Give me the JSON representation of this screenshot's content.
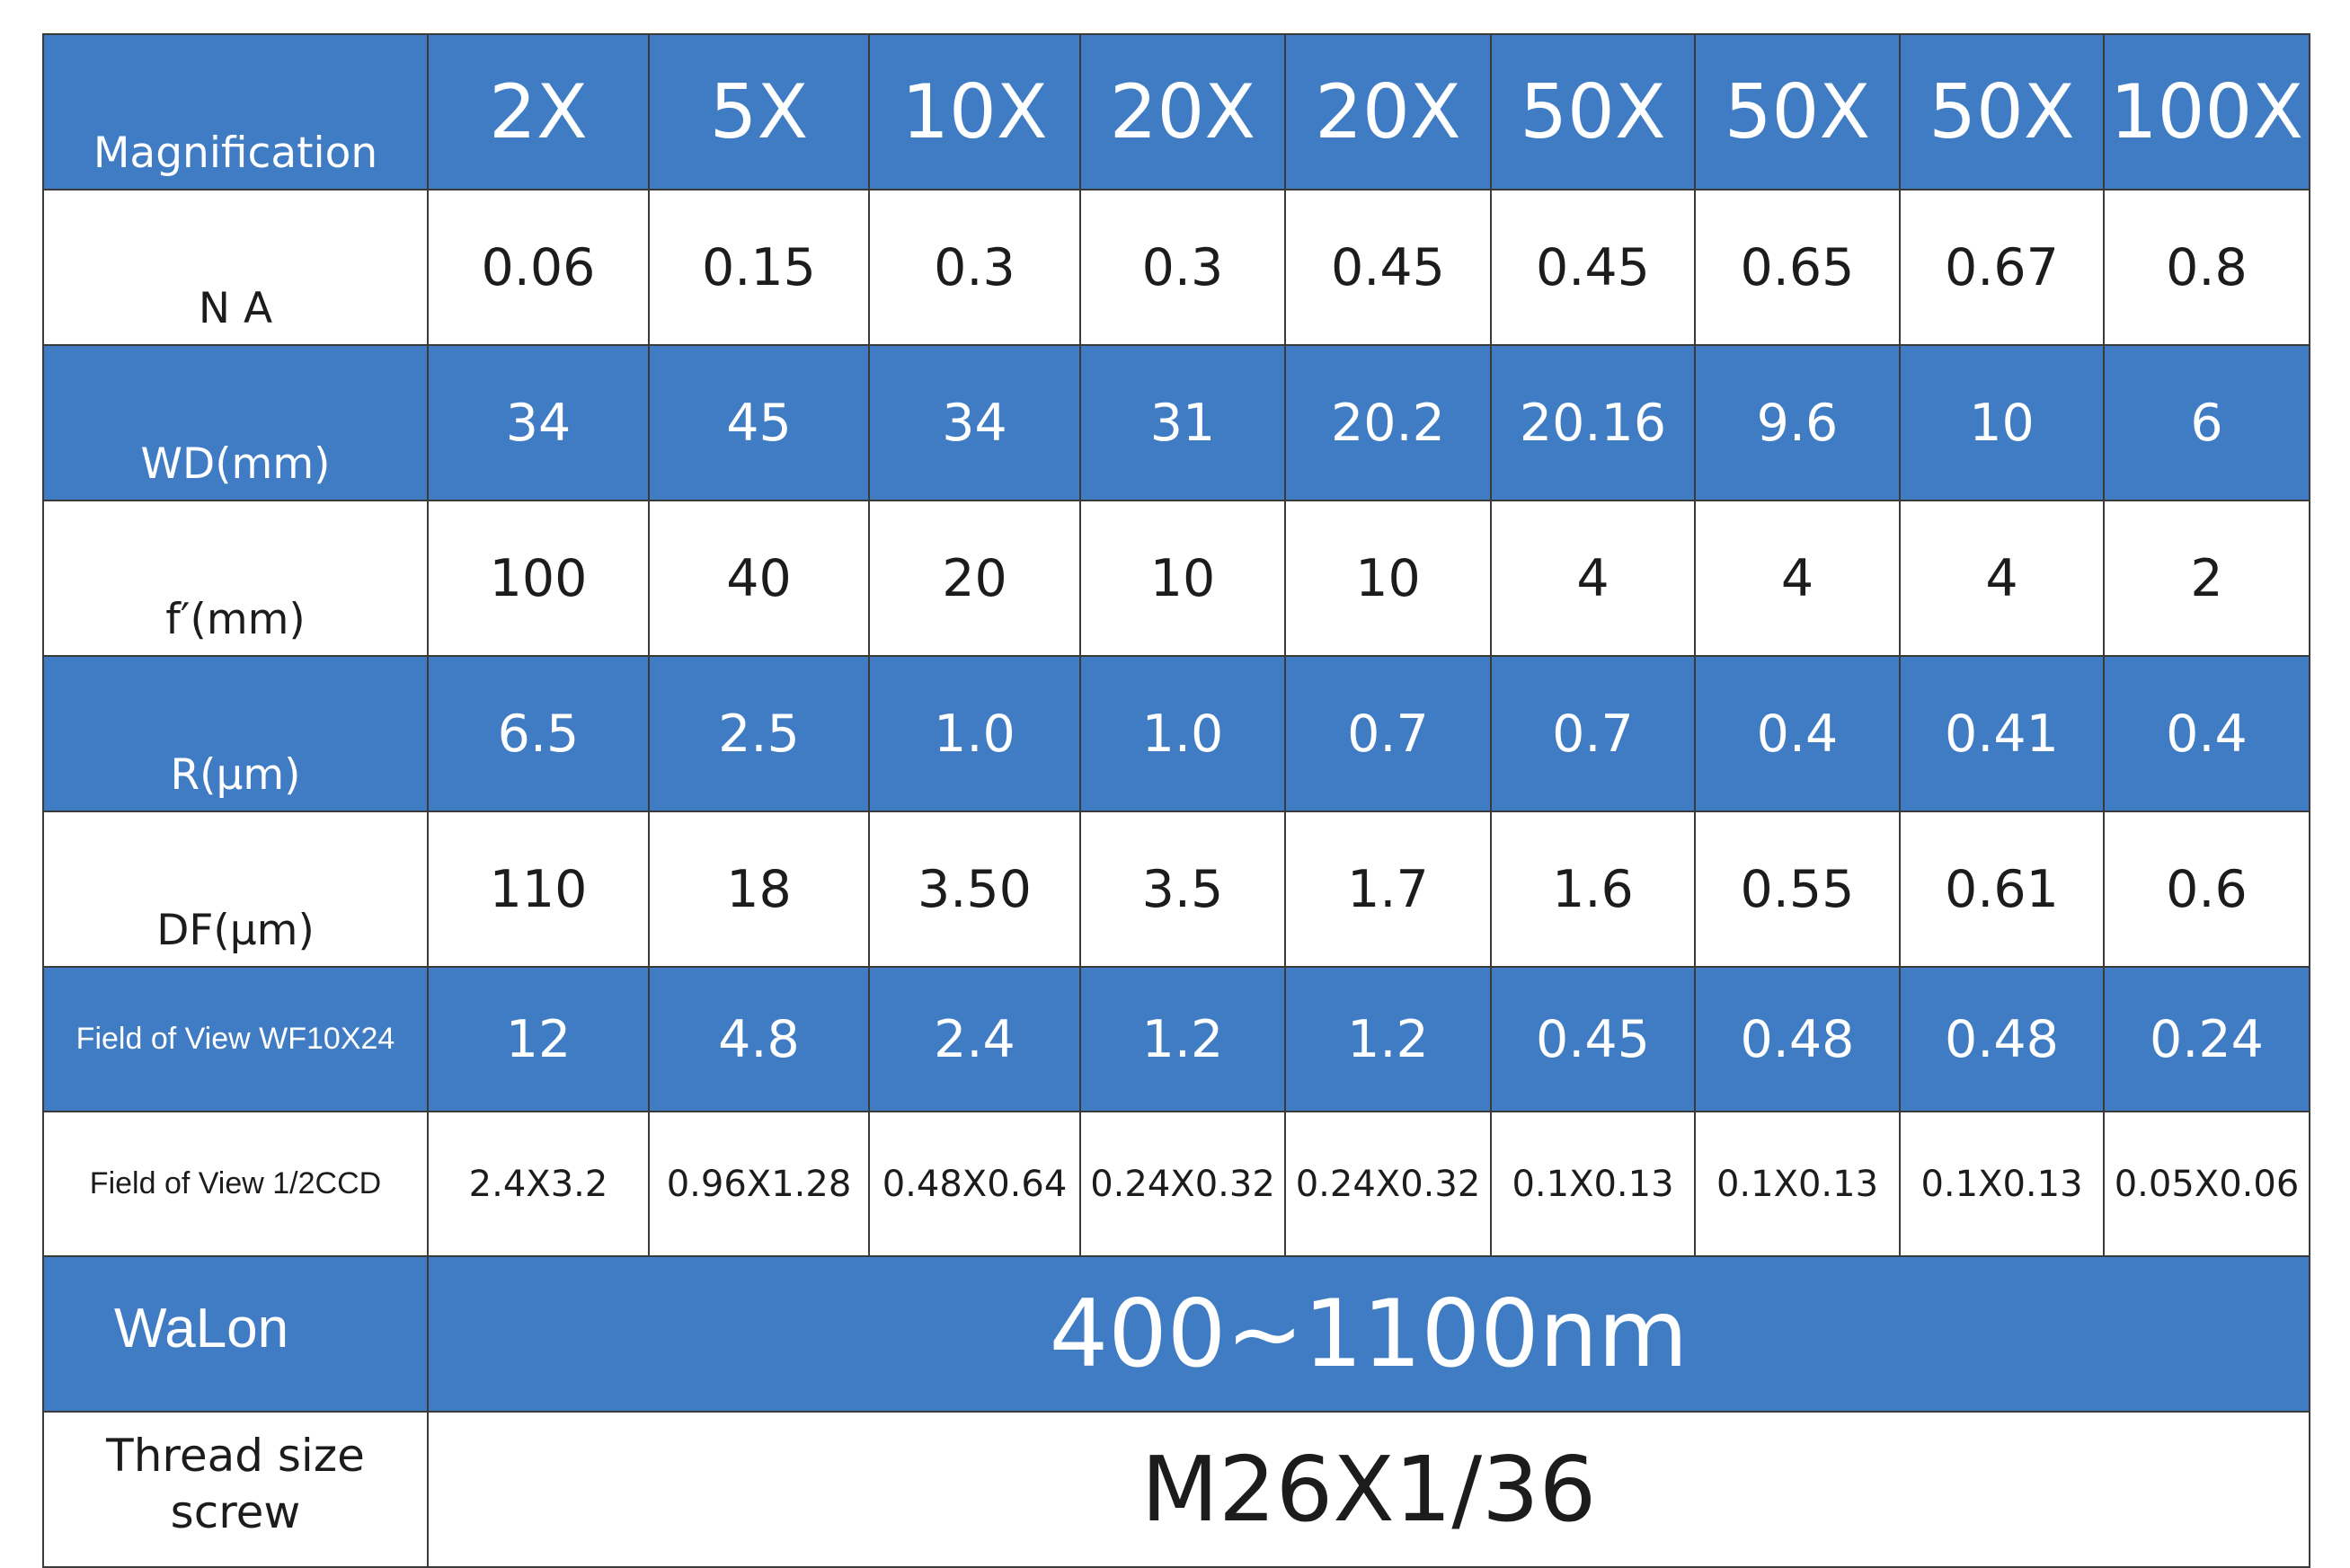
{
  "table": {
    "header": [
      "Magnification",
      "2X",
      "5X",
      "10X",
      "20X",
      "20X",
      "50X",
      "50X",
      "50X",
      "100X"
    ],
    "rows": [
      [
        "N A",
        "0.06",
        "0.15",
        "0.3",
        "0.3",
        "0.45",
        "0.45",
        "0.65",
        "0.67",
        "0.8"
      ],
      [
        "WD(mm)",
        "34",
        "45",
        "34",
        "31",
        "20.2",
        "20.16",
        "9.6",
        "10",
        "6"
      ],
      [
        "f′(mm)",
        "100",
        "40",
        "20",
        "10",
        "10",
        "4",
        "4",
        "4",
        "2"
      ],
      [
        "R(μm)",
        "6.5",
        "2.5",
        "1.0",
        "1.0",
        "0.7",
        "0.7",
        "0.4",
        "0.41",
        "0.4"
      ],
      [
        "DF(μm)",
        "110",
        "18",
        "3.50",
        "3.5",
        "1.7",
        "1.6",
        "0.55",
        "0.61",
        "0.6"
      ],
      [
        "Field of View WF10X24",
        "12",
        "4.8",
        "2.4",
        "1.2",
        "1.2",
        "0.45",
        "0.48",
        "0.48",
        "0.24"
      ],
      [
        "Field of View 1/2CCD",
        "2.4X3.2",
        "0.96X1.28",
        "0.48X0.64",
        "0.24X0.32",
        "0.24X0.32",
        "0.1X0.13",
        "0.1X0.13",
        "0.1X0.13",
        "0.05X0.06"
      ]
    ],
    "wavelength": {
      "label": "WaLon",
      "value": "400~1100nm"
    },
    "thread": {
      "label": [
        "Thread size",
        "screw"
      ],
      "value": "M26X1/36"
    }
  }
}
